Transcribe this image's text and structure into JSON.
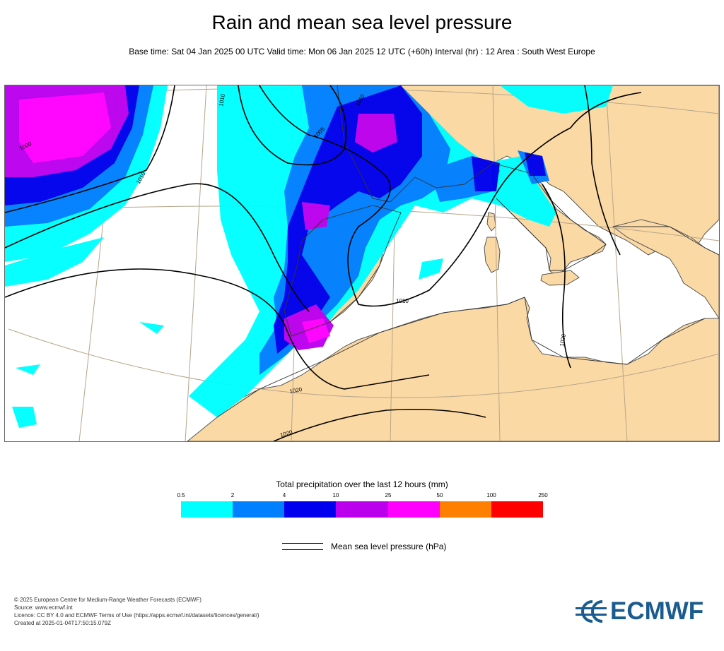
{
  "title": "Rain and mean sea level pressure",
  "subtitle": "Base time: Sat 04 Jan 2025 00 UTC Valid time: Mon 06 Jan 2025 12 UTC (+60h) Interval (hr) : 12 Area : South West Europe",
  "map": {
    "region": "South West Europe",
    "colors": {
      "sea": "#ffffff",
      "land": "#fbd9a5",
      "coast": "#555555",
      "grid": "#b5a68a",
      "isobar": "#000000"
    },
    "isobar_labels": [
      "1000",
      "1010",
      "1010",
      "1010",
      "1005",
      "1010",
      "1020",
      "1020",
      "1020"
    ]
  },
  "legend": {
    "title": "Total precipitation over the last 12 hours (mm)",
    "ticks": [
      "0.5",
      "2",
      "4",
      "10",
      "25",
      "50",
      "100",
      "250"
    ],
    "colors": [
      "#00ffff",
      "#0080ff",
      "#0000ee",
      "#bb00ee",
      "#ff00ff",
      "#ff8000",
      "#ff0000"
    ],
    "msl_label": "Mean sea level pressure (hPa)"
  },
  "footer": {
    "lines": [
      "© 2025 European Centre for Medium-Range Weather Forecasts (ECMWF)",
      "Source: www.ecmwf.int",
      "Licence: CC BY 4.0 and ECMWF Terms of Use (https://apps.ecmwf.int/datasets/licences/general/)",
      "Created at 2025-01-04T17:50:15.079Z"
    ]
  },
  "logo": {
    "text": "ECMWF",
    "color": "#1a5c8f",
    "icon": "ecmwf-logo-icon"
  }
}
